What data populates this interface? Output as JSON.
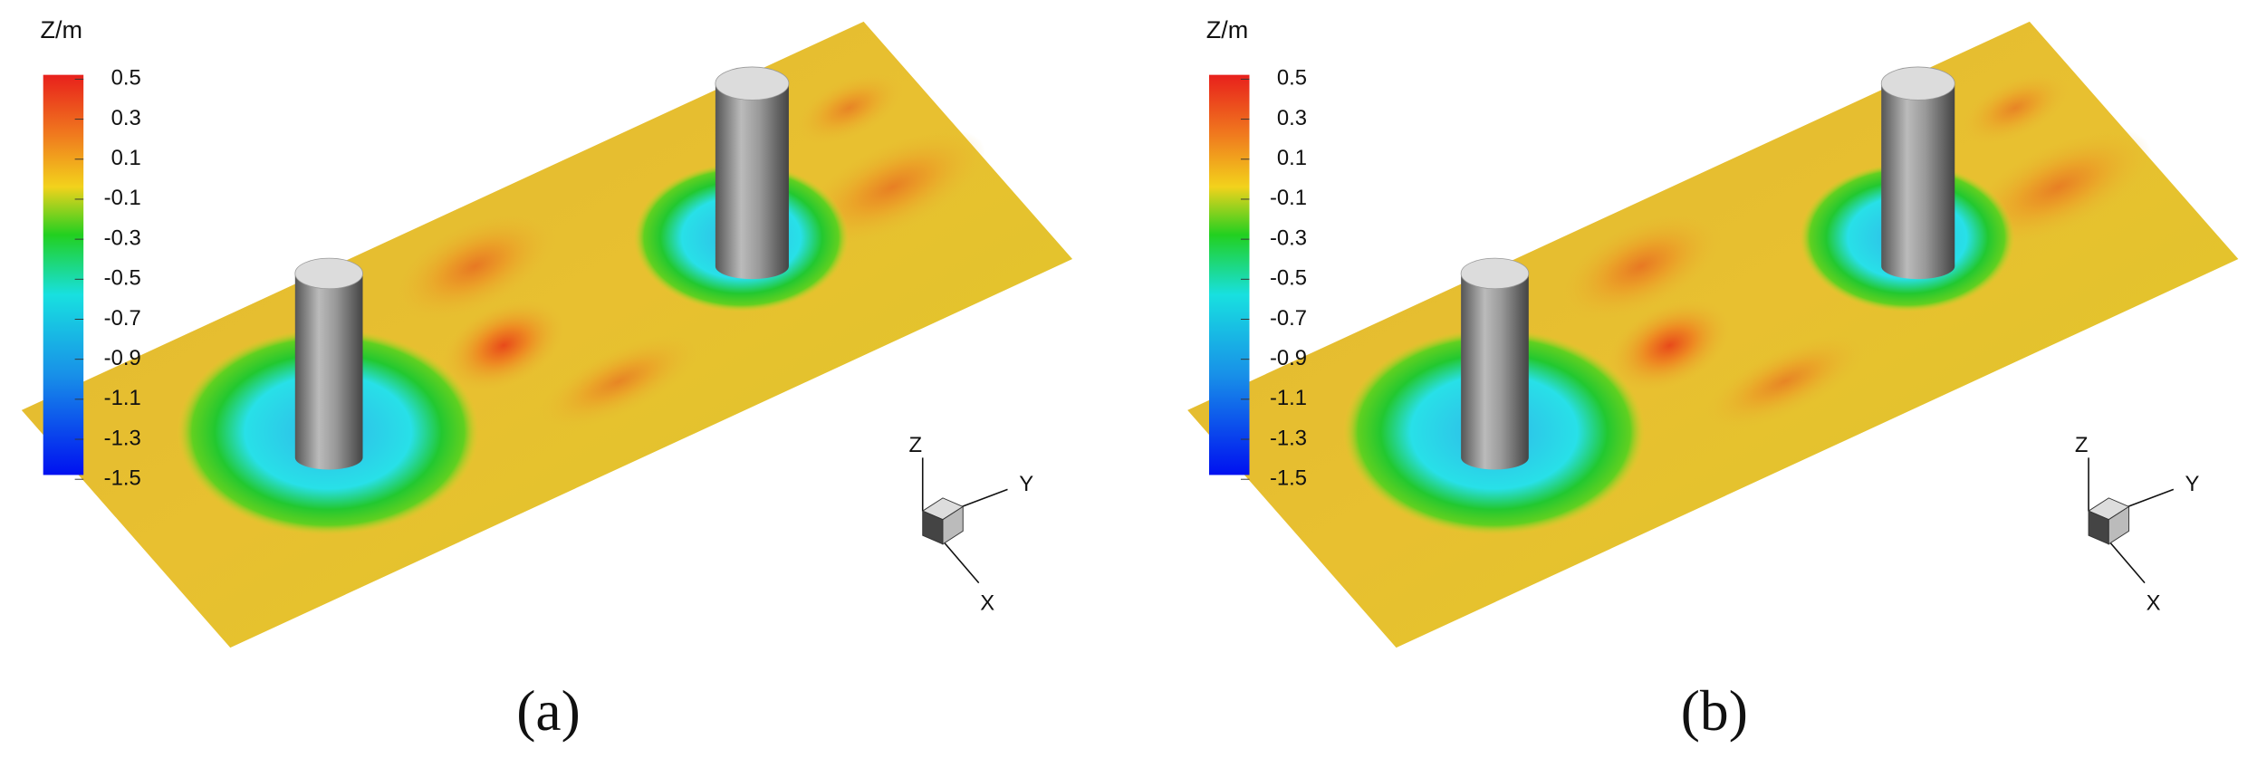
{
  "panels": [
    {
      "colorbar": {
        "title": "Z/m",
        "labels": [
          "0.5",
          "0.3",
          "0.1",
          "-0.1",
          "-0.3",
          "-0.5",
          "-0.7",
          "-0.9",
          "-1.1",
          "-1.3",
          "-1.5"
        ]
      },
      "axes": {
        "z": "Z",
        "y": "Y",
        "x": "X"
      },
      "caption": "(a)"
    },
    {
      "colorbar": {
        "title": "Z/m",
        "labels": [
          "0.5",
          "0.3",
          "0.1",
          "-0.1",
          "-0.3",
          "-0.5",
          "-0.7",
          "-0.9",
          "-1.1",
          "-1.3",
          "-1.5"
        ]
      },
      "axes": {
        "z": "Z",
        "y": "Y",
        "x": "X"
      },
      "caption": "(b)"
    }
  ]
}
